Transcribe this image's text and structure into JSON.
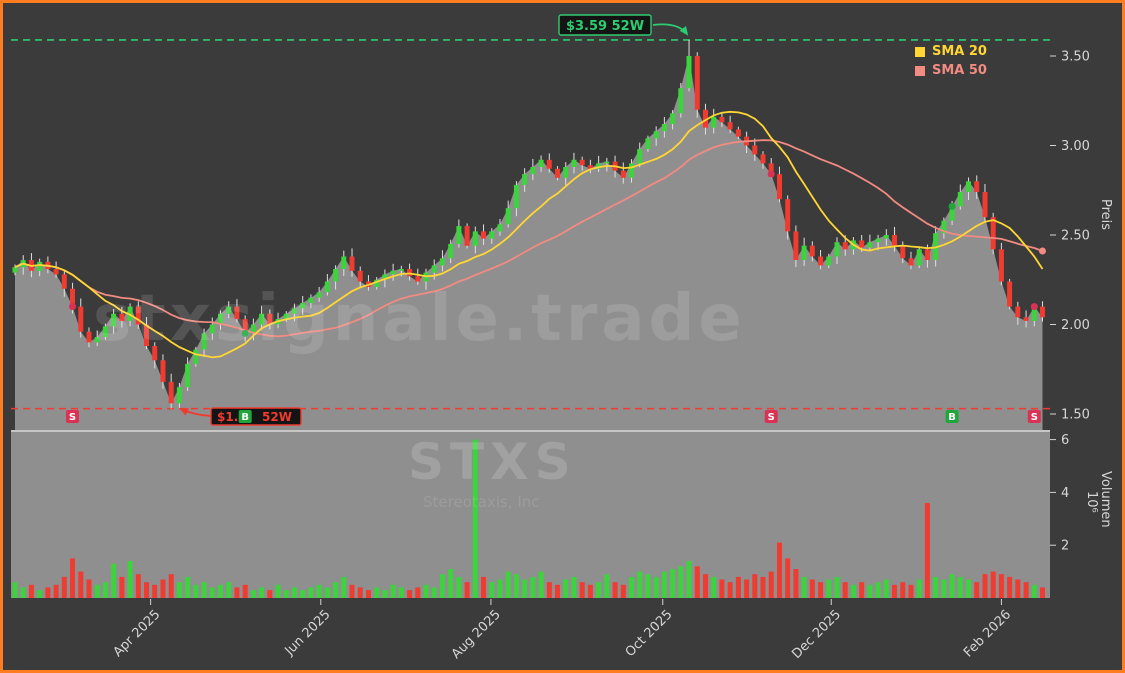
{
  "meta": {
    "watermark_main": "stxsignale.trade",
    "watermark_symbol": "STXS",
    "watermark_company": "Stereotaxis, Inc"
  },
  "colors": {
    "frame_border": "#ff7d21",
    "background": "#3b3b3b",
    "panel_fill": "#8f8f8f",
    "divider": "#c6c6c6",
    "up": "#3dd33d",
    "down": "#ef3b30",
    "wick": "#e0e0e0",
    "buy": "#21a63c",
    "sell": "#d93254",
    "axis_text": "#d6d6d6",
    "label_bg": "#141414"
  },
  "axes": {
    "price_label": "Preis",
    "price_ticks": [
      "1.50",
      "2.00",
      "2.50",
      "3.00",
      "3.50"
    ],
    "volume_label": "Volumen",
    "volume_scale": "10⁶",
    "volume_ticks": [
      "2",
      "4",
      "6"
    ],
    "x_ticks": [
      "Apr 2025",
      "Jun 2025",
      "Aug 2025",
      "Oct 2025",
      "Dec 2025",
      "Feb 2026"
    ]
  },
  "legend": [
    {
      "label": "SMA 20",
      "color": "#ffd633"
    },
    {
      "label": "SMA 50",
      "color": "#f28b82"
    }
  ],
  "annotations": {
    "high_52w": {
      "label": "$3.59 52W",
      "value": 3.59,
      "color": "#2ecc71"
    },
    "low_52w": {
      "label_left": "$1.",
      "label_right": "52W",
      "value": 1.53,
      "color": "#ef3b30"
    }
  },
  "signals": [
    {
      "type": "S",
      "index": 7
    },
    {
      "type": "B",
      "index": 28
    },
    {
      "type": "S",
      "index": 92
    },
    {
      "type": "B",
      "index": 114
    },
    {
      "type": "S",
      "index": 124
    }
  ],
  "chart_data": {
    "type": "candlestick",
    "description": "Stock price (candlesticks) with SMA 20 / SMA 50 overlays, 52-week high/low lines, buy/sell signals and volume subpanel",
    "x_ticks": [
      "Apr 2025",
      "Jun 2025",
      "Aug 2025",
      "Oct 2025",
      "Dec 2025",
      "Feb 2026"
    ],
    "x_tick_indices": [
      16.5,
      37.2,
      57.9,
      78.8,
      99.3,
      120
    ],
    "price_axis_ticks": [
      1.5,
      2.0,
      2.5,
      3.0,
      3.5
    ],
    "price_axis_range": [
      1.42,
      3.72
    ],
    "volume_axis_ticks_millions": [
      2,
      4,
      6
    ],
    "volume_axis_range_millions": [
      0,
      6.2
    ],
    "high_52w": 3.59,
    "low_52w": 1.53,
    "peak_index": 82,
    "trough_index": 19,
    "close": [
      2.32,
      2.36,
      2.3,
      2.35,
      2.31,
      2.28,
      2.2,
      2.1,
      1.96,
      1.9,
      1.93,
      1.99,
      2.06,
      2.02,
      2.1,
      2.0,
      1.88,
      1.8,
      1.68,
      1.56,
      1.65,
      1.78,
      1.86,
      1.95,
      2.0,
      2.06,
      2.1,
      2.03,
      1.95,
      2.0,
      2.06,
      2.0,
      2.03,
      2.06,
      2.09,
      2.12,
      2.15,
      2.18,
      2.24,
      2.31,
      2.38,
      2.3,
      2.24,
      2.21,
      2.25,
      2.28,
      2.3,
      2.31,
      2.27,
      2.24,
      2.29,
      2.33,
      2.37,
      2.45,
      2.55,
      2.44,
      2.52,
      2.48,
      2.52,
      2.56,
      2.65,
      2.78,
      2.84,
      2.88,
      2.92,
      2.87,
      2.82,
      2.88,
      2.92,
      2.89,
      2.87,
      2.9,
      2.91,
      2.86,
      2.82,
      2.9,
      2.98,
      3.04,
      3.08,
      3.12,
      3.18,
      3.32,
      3.5,
      3.2,
      3.1,
      3.16,
      3.13,
      3.09,
      3.05,
      3.0,
      2.95,
      2.9,
      2.84,
      2.7,
      2.52,
      2.36,
      2.44,
      2.38,
      2.33,
      2.38,
      2.46,
      2.42,
      2.47,
      2.43,
      2.46,
      2.48,
      2.5,
      2.44,
      2.37,
      2.33,
      2.42,
      2.36,
      2.51,
      2.58,
      2.66,
      2.74,
      2.8,
      2.74,
      2.6,
      2.42,
      2.24,
      2.1,
      2.04,
      2.02,
      2.1,
      2.04
    ],
    "volume_millions": [
      0.6,
      0.4,
      0.5,
      0.3,
      0.4,
      0.5,
      0.8,
      1.5,
      1.0,
      0.7,
      0.5,
      0.6,
      1.3,
      0.8,
      1.4,
      0.9,
      0.6,
      0.5,
      0.7,
      0.9,
      0.6,
      0.8,
      0.5,
      0.6,
      0.4,
      0.5,
      0.6,
      0.4,
      0.5,
      0.3,
      0.4,
      0.3,
      0.5,
      0.3,
      0.4,
      0.3,
      0.4,
      0.5,
      0.4,
      0.6,
      0.8,
      0.5,
      0.4,
      0.3,
      0.4,
      0.3,
      0.5,
      0.4,
      0.3,
      0.4,
      0.5,
      0.4,
      0.9,
      1.1,
      0.8,
      0.6,
      6.0,
      0.8,
      0.6,
      0.7,
      1.0,
      0.9,
      0.7,
      0.8,
      1.0,
      0.6,
      0.5,
      0.7,
      0.8,
      0.6,
      0.5,
      0.6,
      0.9,
      0.6,
      0.5,
      0.8,
      1.0,
      0.9,
      0.8,
      1.0,
      1.1,
      1.2,
      1.4,
      1.2,
      0.9,
      0.8,
      0.7,
      0.6,
      0.8,
      0.7,
      0.9,
      0.8,
      1.0,
      2.1,
      1.5,
      1.1,
      0.8,
      0.7,
      0.6,
      0.7,
      0.8,
      0.6,
      0.5,
      0.6,
      0.5,
      0.6,
      0.7,
      0.5,
      0.6,
      0.5,
      0.7,
      3.6,
      0.8,
      0.7,
      0.9,
      0.8,
      0.7,
      0.6,
      0.9,
      1.0,
      0.9,
      0.8,
      0.7,
      0.6,
      0.5,
      0.4
    ],
    "sma": [
      {
        "label": "SMA 20",
        "period": 20,
        "color": "#ffd633"
      },
      {
        "label": "SMA 50",
        "period": 50,
        "color": "#f28b82"
      }
    ]
  }
}
